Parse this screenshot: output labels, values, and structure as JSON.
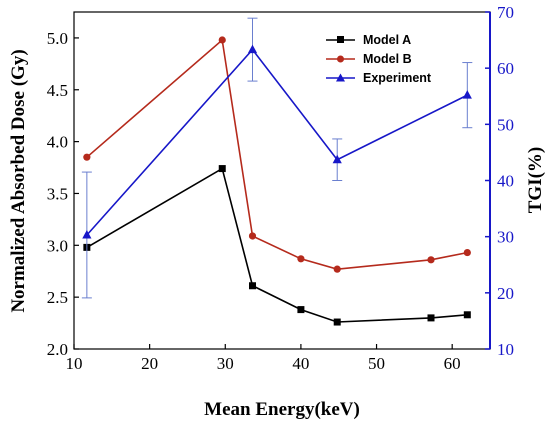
{
  "chart_data": {
    "type": "line",
    "title": "",
    "xlabel": "Mean Energy(keV)",
    "ylabel": "Normalized Absorbed Dose (Gy)",
    "y2label": "TGI(%)",
    "xlim": [
      10,
      65
    ],
    "ylim": [
      2.0,
      5.25
    ],
    "y2lim": [
      10,
      70
    ],
    "xticks": [
      "10",
      "20",
      "30",
      "40",
      "50",
      "60"
    ],
    "yticks": [
      "2.0",
      "2.5",
      "3.0",
      "3.5",
      "4.0",
      "4.5",
      "5.0"
    ],
    "y2ticks": [
      "10",
      "20",
      "30",
      "40",
      "50",
      "60",
      "70"
    ],
    "grid": false,
    "legend": "top-right",
    "series": [
      {
        "name": "Model A",
        "axis": "left",
        "color": "#000000",
        "marker": "square",
        "x": [
          11.7,
          29.6,
          33.6,
          40.0,
          44.8,
          57.2,
          62.0
        ],
        "y": [
          2.98,
          3.74,
          2.61,
          2.38,
          2.26,
          2.3,
          2.33
        ]
      },
      {
        "name": "Model B",
        "axis": "left",
        "color": "#b52a1c",
        "marker": "circle",
        "x": [
          11.7,
          29.6,
          33.6,
          40.0,
          44.8,
          57.2,
          62.0
        ],
        "y": [
          3.85,
          4.98,
          3.09,
          2.87,
          2.77,
          2.86,
          2.93
        ]
      },
      {
        "name": "Experiment",
        "axis": "right",
        "color": "#1717c8",
        "marker": "triangle",
        "x": [
          11.7,
          33.6,
          44.8,
          62.0
        ],
        "y": [
          30.3,
          63.3,
          43.7,
          55.2
        ],
        "err": [
          11.2,
          5.6,
          3.7,
          5.8
        ]
      }
    ]
  }
}
